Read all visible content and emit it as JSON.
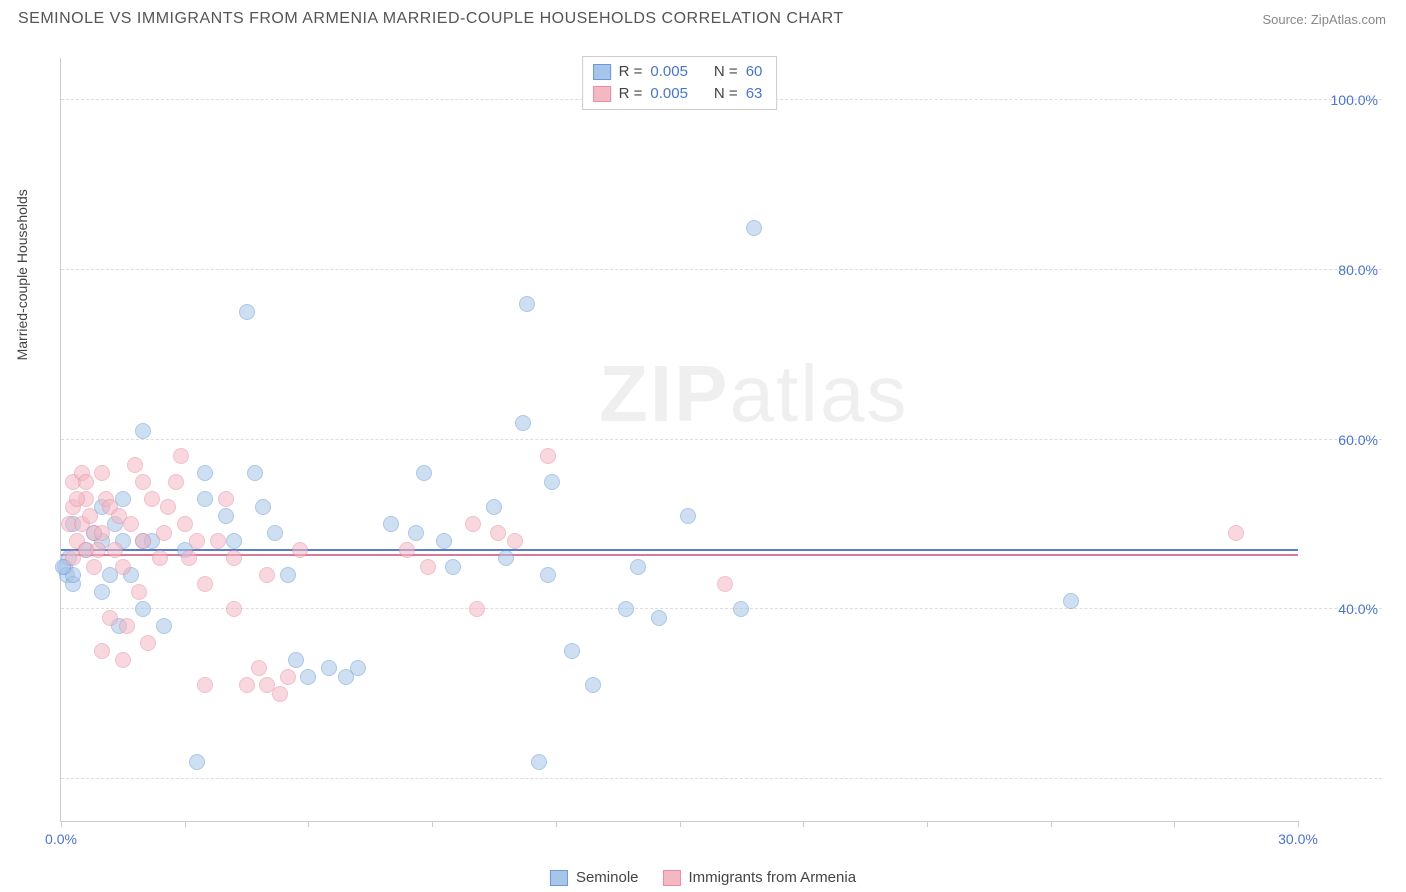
{
  "header": {
    "title": "SEMINOLE VS IMMIGRANTS FROM ARMENIA MARRIED-COUPLE HOUSEHOLDS CORRELATION CHART",
    "source": "Source: ZipAtlas.com"
  },
  "chart": {
    "type": "scatter",
    "ylabel": "Married-couple Households",
    "watermark": "ZIPatlas",
    "xlim": [
      0,
      30
    ],
    "ylim": [
      15,
      105
    ],
    "x_ticks": [
      0,
      3,
      6,
      9,
      12,
      15,
      18,
      21,
      24,
      27,
      30
    ],
    "x_tick_labels_shown": {
      "0": "0.0%",
      "30": "30.0%"
    },
    "y_grid": [
      20,
      40,
      60,
      80,
      100
    ],
    "y_tick_labels": {
      "40": "40.0%",
      "60": "60.0%",
      "80": "80.0%",
      "100": "100.0%"
    },
    "background_color": "#ffffff",
    "grid_color": "#dddddd",
    "axis_color": "#cccccc",
    "tick_label_color": "#4a74c9",
    "series": [
      {
        "name": "Seminole",
        "fill_color": "#a7c5e8",
        "stroke_color": "#6a9bd8",
        "fill_opacity": 0.55,
        "marker_radius": 8,
        "trend_y": 46.8,
        "trend_color": "#5b7fc7",
        "R": "0.005",
        "N": "60",
        "points": [
          [
            0.1,
            45
          ],
          [
            0.15,
            44
          ],
          [
            0.2,
            46
          ],
          [
            0.3,
            43
          ],
          [
            0.3,
            50
          ],
          [
            1.0,
            48
          ],
          [
            1.0,
            52
          ],
          [
            1.0,
            42
          ],
          [
            1.2,
            44
          ],
          [
            1.4,
            38
          ],
          [
            1.5,
            48
          ],
          [
            1.5,
            53
          ],
          [
            1.7,
            44
          ],
          [
            2.0,
            61
          ],
          [
            2.0,
            48
          ],
          [
            2.0,
            40
          ],
          [
            2.2,
            48
          ],
          [
            2.5,
            38
          ],
          [
            3.0,
            47
          ],
          [
            3.3,
            22
          ],
          [
            3.5,
            53
          ],
          [
            3.5,
            56
          ],
          [
            4.0,
            51
          ],
          [
            4.2,
            48
          ],
          [
            4.5,
            75
          ],
          [
            4.7,
            56
          ],
          [
            4.9,
            52
          ],
          [
            5.2,
            49
          ],
          [
            5.5,
            44
          ],
          [
            5.7,
            34
          ],
          [
            6.0,
            32
          ],
          [
            6.5,
            33
          ],
          [
            6.9,
            32
          ],
          [
            7.2,
            33
          ],
          [
            8.0,
            50
          ],
          [
            8.6,
            49
          ],
          [
            8.8,
            56
          ],
          [
            9.3,
            48
          ],
          [
            9.5,
            45
          ],
          [
            10.5,
            52
          ],
          [
            10.8,
            46
          ],
          [
            11.2,
            62
          ],
          [
            11.3,
            76
          ],
          [
            11.6,
            22
          ],
          [
            11.8,
            44
          ],
          [
            11.9,
            55
          ],
          [
            12.4,
            35
          ],
          [
            12.9,
            31
          ],
          [
            13.7,
            40
          ],
          [
            14.0,
            45
          ],
          [
            14.5,
            39
          ],
          [
            15.2,
            51
          ],
          [
            16.5,
            40
          ],
          [
            16.8,
            85
          ],
          [
            24.5,
            41
          ],
          [
            0.3,
            44
          ],
          [
            0.05,
            45
          ],
          [
            0.6,
            47
          ],
          [
            0.8,
            49
          ],
          [
            1.3,
            50
          ]
        ]
      },
      {
        "name": "Immigrants from Armenia",
        "fill_color": "#f4b8c4",
        "stroke_color": "#e88da0",
        "fill_opacity": 0.55,
        "marker_radius": 8,
        "trend_y": 46.3,
        "trend_color": "#d87aa0",
        "R": "0.005",
        "N": "63",
        "points": [
          [
            0.2,
            50
          ],
          [
            0.3,
            55
          ],
          [
            0.3,
            52
          ],
          [
            0.4,
            48
          ],
          [
            0.5,
            56
          ],
          [
            0.5,
            50
          ],
          [
            0.6,
            53
          ],
          [
            0.6,
            47
          ],
          [
            0.7,
            51
          ],
          [
            0.8,
            49
          ],
          [
            0.8,
            45
          ],
          [
            1.0,
            35
          ],
          [
            1.0,
            49
          ],
          [
            1.1,
            53
          ],
          [
            1.2,
            39
          ],
          [
            1.2,
            52
          ],
          [
            1.3,
            47
          ],
          [
            1.4,
            51
          ],
          [
            1.5,
            45
          ],
          [
            1.5,
            34
          ],
          [
            1.7,
            50
          ],
          [
            1.8,
            57
          ],
          [
            2.0,
            48
          ],
          [
            2.0,
            55
          ],
          [
            2.2,
            53
          ],
          [
            2.4,
            46
          ],
          [
            2.5,
            49
          ],
          [
            2.8,
            55
          ],
          [
            2.9,
            58
          ],
          [
            3.1,
            46
          ],
          [
            3.3,
            48
          ],
          [
            3.5,
            43
          ],
          [
            3.5,
            31
          ],
          [
            3.8,
            48
          ],
          [
            4.0,
            53
          ],
          [
            4.2,
            40
          ],
          [
            4.2,
            46
          ],
          [
            4.5,
            31
          ],
          [
            4.8,
            33
          ],
          [
            5.0,
            31
          ],
          [
            5.0,
            44
          ],
          [
            5.3,
            30
          ],
          [
            5.5,
            32
          ],
          [
            5.8,
            47
          ],
          [
            8.4,
            47
          ],
          [
            8.9,
            45
          ],
          [
            10.0,
            50
          ],
          [
            10.1,
            40
          ],
          [
            10.6,
            49
          ],
          [
            11.0,
            48
          ],
          [
            11.8,
            58
          ],
          [
            16.1,
            43
          ],
          [
            28.5,
            49
          ],
          [
            0.4,
            53
          ],
          [
            0.6,
            55
          ],
          [
            0.9,
            47
          ],
          [
            1.0,
            56
          ],
          [
            1.6,
            38
          ],
          [
            1.9,
            42
          ],
          [
            2.1,
            36
          ],
          [
            2.6,
            52
          ],
          [
            3.0,
            50
          ],
          [
            0.3,
            46
          ]
        ]
      }
    ],
    "legend_top": [
      {
        "swatch_fill": "#a7c5e8",
        "swatch_stroke": "#6a9bd8",
        "R_label": "R =",
        "R": "0.005",
        "N_label": "N =",
        "N": "60"
      },
      {
        "swatch_fill": "#f4b8c4",
        "swatch_stroke": "#e88da0",
        "R_label": "R =",
        "R": "0.005",
        "N_label": "N =",
        "N": "63"
      }
    ],
    "legend_bottom": [
      {
        "swatch_fill": "#a7c5e8",
        "swatch_stroke": "#6a9bd8",
        "label": "Seminole"
      },
      {
        "swatch_fill": "#f4b8c4",
        "swatch_stroke": "#e88da0",
        "label": "Immigrants from Armenia"
      }
    ]
  }
}
